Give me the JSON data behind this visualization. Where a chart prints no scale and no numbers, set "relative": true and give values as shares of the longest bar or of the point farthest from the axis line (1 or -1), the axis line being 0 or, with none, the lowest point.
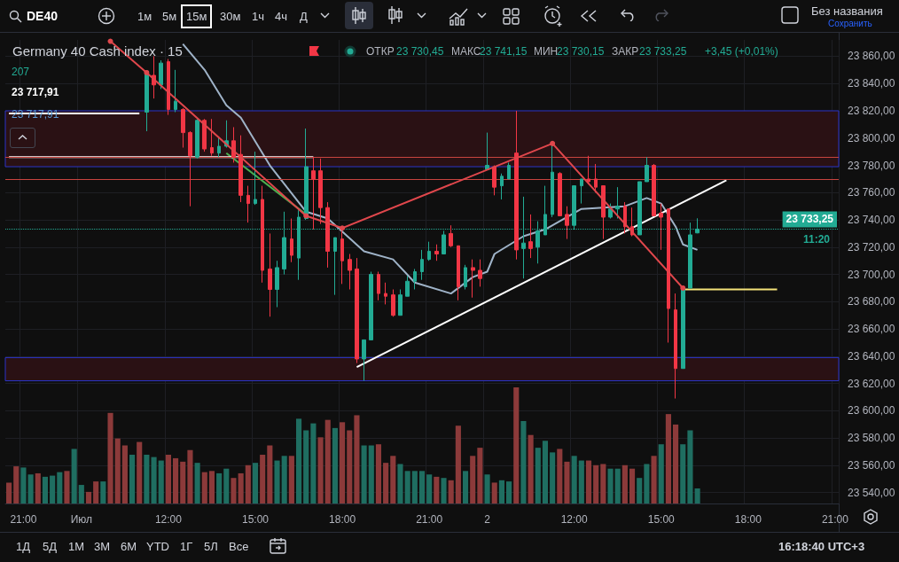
{
  "chart_data": [
    {
      "type": "candlestick",
      "title": "Germany 40 Cash index · 15",
      "annotations": [
        "DE40",
        "1м",
        "5м",
        "15м",
        "30м",
        "1ч",
        "4ч",
        "Д",
        "Без названия",
        "Сохранить",
        "ОТКР",
        "23 730,45",
        "МАКС",
        "23 741,15",
        "МИН",
        "23 730,15",
        "ЗАКР",
        "23 733,25",
        "+3,45 (+0,01%)",
        "207",
        "23 717,91",
        "23 717,91",
        "1Д",
        "5Д",
        "1М",
        "3М",
        "6М",
        "YTD",
        "1Г",
        "5Л",
        "Все",
        "16:18:40 UTC+3",
        "11:20"
      ],
      "categories": [
        null,
        null,
        "21:00",
        null,
        null,
        null,
        null,
        null,
        null,
        null,
        "Июл",
        null,
        null,
        null,
        null,
        null,
        null,
        null,
        null,
        null,
        null,
        null,
        "12:00",
        null,
        null,
        null,
        null,
        null,
        null,
        null,
        null,
        null,
        null,
        null,
        "15:00",
        null,
        null,
        null,
        null,
        null,
        null,
        null,
        null,
        null,
        null,
        null,
        "18:00",
        null,
        null,
        null,
        null,
        null,
        null,
        null,
        null,
        null,
        null,
        null,
        "21:00",
        null,
        null,
        null,
        null,
        null,
        null,
        null,
        "2",
        null,
        null,
        null,
        null,
        null,
        null,
        null,
        null,
        null,
        null,
        null,
        "12:00",
        null,
        null,
        null,
        null,
        null,
        null,
        null,
        null,
        null,
        null,
        null,
        "15:00",
        null,
        null,
        null,
        null,
        null,
        null,
        null,
        null,
        null,
        null,
        null,
        "18:00",
        null,
        null,
        null,
        null,
        null,
        null,
        null,
        null,
        null,
        null,
        null,
        "21:00"
      ],
      "colors": [
        null,
        null,
        null,
        null,
        null,
        null,
        null,
        null,
        null,
        null,
        null,
        null,
        null,
        null,
        null,
        null,
        null,
        null,
        null,
        "#22ab94",
        "#f23645",
        "#22ab94",
        "#f23645",
        "#22ab94",
        "#f23645",
        "#f23645",
        "#22ab94",
        "#f23645",
        "#f23645",
        "#22ab94",
        "#22ab94",
        "#f23645",
        "#f23645",
        "#f23645",
        "#22ab94",
        "#f23645",
        "#f23645",
        "#22ab94",
        "#22ab94",
        "#f23645",
        "#22ab94",
        "#22ab94",
        "#f23645",
        "#f23645",
        "#f23645",
        "#22ab94",
        "#f23645",
        "#f23645",
        "#f23645",
        "#22ab94",
        "#22ab94",
        "#f23645",
        "#f23645",
        "#f23645",
        "#22ab94",
        "#22ab94",
        "#22ab94",
        "#22ab94",
        "#22ab94",
        "#f23645",
        "#22ab94",
        "#f23645",
        "#f23645",
        "#22ab94",
        "#f23645",
        "#f23645",
        "#22ab94",
        "#f23645",
        "#22ab94",
        "#22ab94",
        "#f23645",
        "#22ab94",
        "#f23645",
        "#22ab94",
        "#22ab94",
        "#22ab94",
        "#f23645",
        "#f23645",
        "#22ab94",
        "#22ab94",
        "#f23645",
        "#f23645",
        "#f23645",
        "#22ab94",
        "#22ab94",
        "#f23645",
        "#f23645",
        "#22ab94",
        "#22ab94",
        "#f23645",
        "#f23645",
        "#f23645",
        "#f23645",
        "#22ab94",
        "#22ab94",
        "#22ab94",
        null,
        null,
        null,
        null,
        null,
        null,
        null,
        null,
        null,
        null,
        null,
        null,
        null,
        null,
        null,
        null,
        null,
        null,
        null
      ],
      "ohlc": [
        null,
        null,
        null,
        null,
        null,
        null,
        null,
        null,
        null,
        null,
        null,
        null,
        null,
        null,
        null,
        null,
        null,
        null,
        null,
        [
          23819,
          23849,
          23805,
          23849
        ],
        [
          23846,
          23860,
          23829,
          23839
        ],
        [
          23839,
          23857,
          23836,
          23855
        ],
        [
          23856,
          23858,
          23817,
          23821
        ],
        [
          23821,
          23850,
          23819,
          23827
        ],
        [
          23821,
          23822,
          23793,
          23804
        ],
        [
          23804,
          23805,
          23750,
          23787
        ],
        [
          23786,
          23814,
          23785,
          23813
        ],
        [
          23813,
          23814,
          23790,
          23792
        ],
        [
          23793,
          23814,
          23787,
          23789
        ],
        [
          23789,
          23800,
          23786,
          23794
        ],
        [
          23794,
          23813,
          23793,
          23798
        ],
        [
          23798,
          23808,
          23782,
          23786
        ],
        [
          23788,
          23802,
          23753,
          23758
        ],
        [
          23758,
          23765,
          23738,
          23752
        ],
        [
          23752,
          23790,
          23751,
          23755
        ],
        [
          23755,
          23765,
          23694,
          23703
        ],
        [
          23704,
          23730,
          23669,
          23689
        ],
        [
          23689,
          23710,
          23676,
          23705
        ],
        [
          23704,
          23746,
          23700,
          23727
        ],
        [
          23726,
          23741,
          23709,
          23714
        ],
        [
          23712,
          23747,
          23696,
          23742
        ],
        [
          23741,
          23807,
          23740,
          23779
        ],
        [
          23776,
          23786,
          23733,
          23770
        ],
        [
          23776,
          23785,
          23737,
          23749
        ],
        [
          23749,
          23753,
          23705,
          23717
        ],
        [
          23717,
          23727,
          23685,
          23727
        ],
        [
          23726,
          23732,
          23693,
          23710
        ],
        [
          23711,
          23715,
          23689,
          23703
        ],
        [
          23704,
          23712,
          23635,
          23638
        ],
        [
          23638,
          23652,
          23622,
          23652
        ],
        [
          23652,
          23702,
          23652,
          23700
        ],
        [
          23700,
          23702,
          23681,
          23686
        ],
        [
          23686,
          23694,
          23678,
          23684
        ],
        [
          23685,
          23689,
          23669,
          23670
        ],
        [
          23670,
          23689,
          23670,
          23685
        ],
        [
          23684,
          23699,
          23684,
          23695
        ],
        [
          23695,
          23704,
          23689,
          23702
        ],
        [
          23702,
          23718,
          23696,
          23711
        ],
        [
          23711,
          23724,
          23710,
          23717
        ],
        [
          23717,
          23722,
          23710,
          23715
        ],
        [
          23715,
          23732,
          23715,
          23729
        ],
        [
          23730,
          23736,
          23720,
          23721
        ],
        [
          23721,
          23721,
          23681,
          23691
        ],
        [
          23691,
          23707,
          23689,
          23705
        ],
        [
          23705,
          23711,
          23683,
          23703
        ],
        [
          23703,
          23711,
          23691,
          23697
        ],
        [
          23777,
          23804,
          23777,
          23780
        ],
        [
          23779,
          23780,
          23758,
          23764
        ],
        [
          23765,
          23774,
          23755,
          23772
        ],
        [
          23770,
          23782,
          23770,
          23780
        ],
        [
          23789,
          23820,
          23711,
          23718
        ],
        [
          23719,
          23757,
          23697,
          23723
        ],
        [
          23724,
          23744,
          23712,
          23719
        ],
        [
          23720,
          23739,
          23708,
          23732
        ],
        [
          23729,
          23765,
          23729,
          23744
        ],
        [
          23744,
          23795,
          23742,
          23775
        ],
        [
          23774,
          23775,
          23743,
          23743
        ],
        [
          23744,
          23750,
          23726,
          23736
        ],
        [
          23736,
          23765,
          23733,
          23765
        ],
        [
          23765,
          23770,
          23752,
          23770
        ],
        [
          23770,
          23787,
          23766,
          23768
        ],
        [
          23770,
          23781,
          23760,
          23764
        ],
        [
          23765,
          23765,
          23726,
          23742
        ],
        [
          23742,
          23752,
          23741,
          23748
        ],
        [
          23748,
          23764,
          23741,
          23750
        ],
        [
          23750,
          23753,
          23730,
          23735
        ],
        [
          23735,
          23749,
          23728,
          23729
        ],
        [
          23729,
          23768,
          23729,
          23768
        ],
        [
          23768,
          23786,
          23768,
          23780
        ],
        [
          23780,
          23781,
          23743,
          23743
        ],
        [
          23745,
          23752,
          23718,
          23742
        ],
        [
          23748,
          23748,
          23650,
          23675
        ],
        [
          23674,
          23686,
          23609,
          23631
        ],
        [
          23631,
          23690,
          23631,
          23690
        ],
        [
          23690,
          23738,
          23690,
          23729
        ],
        [
          23730.45,
          23741.15,
          23730.15,
          23733.25
        ],
        null,
        null,
        null,
        null,
        null,
        null,
        null,
        null,
        null,
        null,
        null,
        null,
        null,
        null,
        null,
        null,
        null,
        null,
        null
      ],
      "series": [
        {
          "type": "line",
          "color": "#9fb3c8",
          "values": [
            null,
            null,
            null,
            null,
            null,
            null,
            null,
            null,
            null,
            null,
            null,
            null,
            null,
            null,
            null,
            null,
            null,
            null,
            null,
            null,
            null,
            null,
            null,
            null,
            23869,
            null,
            null,
            23850,
            null,
            null,
            23824,
            null,
            23815,
            null,
            null,
            null,
            23780,
            null,
            null,
            null,
            null,
            23746,
            null,
            null,
            23741,
            null,
            null,
            null,
            null,
            23717,
            null,
            null,
            null,
            23711,
            null,
            null,
            23694,
            null,
            null,
            null,
            null,
            23686,
            null,
            null,
            23698,
            null,
            23702,
            23715,
            null,
            null,
            null,
            23728,
            null,
            null,
            23733,
            null,
            null,
            null,
            null,
            23748,
            null,
            null,
            null,
            null,
            null,
            23750,
            null,
            null,
            23756,
            null,
            23752,
            null,
            23735,
            23722,
            null,
            23718,
            null,
            null,
            null,
            null,
            null,
            null,
            null,
            null,
            null,
            null,
            null,
            null,
            null,
            null,
            null,
            null,
            null,
            null,
            null
          ]
        },
        {
          "type": "line",
          "color": "#e0474c",
          "marker": "circle",
          "values": [
            null,
            null,
            null,
            null,
            null,
            null,
            null,
            null,
            null,
            null,
            null,
            null,
            null,
            null,
            23871,
            null,
            null,
            null,
            null,
            23848,
            null,
            null,
            null,
            null,
            null,
            null,
            null,
            null,
            null,
            null,
            null,
            null,
            null,
            null,
            null,
            null,
            null,
            null,
            null,
            null,
            null,
            23743,
            null,
            null,
            null,
            null,
            23734,
            null,
            null,
            null,
            null,
            null,
            null,
            null,
            null,
            null,
            null,
            null,
            null,
            null,
            null,
            null,
            null,
            null,
            null,
            null,
            null,
            null,
            null,
            null,
            null,
            null,
            null,
            null,
            null,
            23796,
            null,
            null,
            null,
            null,
            null,
            null,
            null,
            null,
            null,
            null,
            null,
            null,
            null,
            null,
            null,
            null,
            null,
            23690,
            null,
            null,
            null,
            null,
            null,
            null,
            null,
            null,
            null,
            null,
            null,
            null,
            null,
            null,
            null,
            null,
            null,
            null,
            null,
            null,
            null
          ]
        },
        {
          "type": "line",
          "color": "#4caf50",
          "values": [
            null,
            null,
            null,
            null,
            null,
            null,
            null,
            null,
            null,
            null,
            null,
            null,
            null,
            null,
            null,
            null,
            null,
            null,
            null,
            null,
            null,
            null,
            null,
            null,
            null,
            null,
            null,
            null,
            null,
            null,
            23789,
            null,
            null,
            null,
            null,
            null,
            null,
            null,
            null,
            null,
            null,
            23744,
            null,
            null,
            null,
            null,
            null,
            null,
            null,
            null,
            null,
            null,
            null,
            null,
            null,
            null,
            null,
            null,
            null,
            null,
            null,
            null,
            null,
            null,
            null,
            null,
            null,
            null,
            null,
            null,
            null,
            null,
            null,
            null,
            null,
            null,
            null,
            null,
            null,
            null,
            null,
            null,
            null,
            null,
            null,
            null,
            null,
            null,
            null,
            null,
            null,
            null,
            null,
            null,
            null,
            null,
            null,
            null,
            null,
            null,
            null,
            null,
            null,
            null,
            null,
            null,
            null,
            null,
            null,
            null,
            null,
            null,
            null,
            null,
            null
          ]
        },
        {
          "type": "line",
          "color": "#ffffff",
          "values": [
            null,
            null,
            null,
            null,
            null,
            null,
            null,
            null,
            null,
            null,
            null,
            null,
            null,
            null,
            null,
            null,
            null,
            null,
            null,
            null,
            null,
            null,
            null,
            null,
            null,
            null,
            null,
            null,
            null,
            null,
            null,
            null,
            null,
            null,
            null,
            null,
            null,
            null,
            null,
            null,
            null,
            null,
            null,
            null,
            null,
            null,
            null,
            null,
            23632,
            null,
            null,
            null,
            null,
            null,
            null,
            null,
            null,
            null,
            null,
            null,
            null,
            null,
            null,
            null,
            null,
            null,
            null,
            null,
            null,
            null,
            null,
            null,
            null,
            null,
            null,
            null,
            null,
            null,
            null,
            null,
            null,
            null,
            null,
            null,
            null,
            null,
            null,
            null,
            null,
            null,
            null,
            null,
            null,
            null,
            null,
            null,
            null,
            null,
            null,
            23769,
            null,
            null,
            null,
            null,
            null,
            null,
            null,
            null,
            null,
            null,
            null,
            null,
            null,
            null,
            null
          ]
        },
        {
          "type": "line",
          "color": "#ffffff",
          "values": [
            23818,
            null,
            null,
            null,
            null,
            null,
            null,
            null,
            null,
            null,
            null,
            null,
            null,
            null,
            null,
            null,
            null,
            null,
            23818,
            null,
            null,
            null,
            null,
            null,
            null,
            null,
            null,
            null,
            null,
            null,
            null,
            null,
            null,
            null,
            null,
            null,
            null,
            null,
            null,
            null,
            null,
            null,
            null,
            null,
            null,
            null,
            null,
            null,
            null,
            null,
            null,
            null,
            null,
            null,
            null,
            null,
            null,
            null,
            null,
            null,
            null,
            null,
            null,
            null,
            null,
            null,
            null,
            null,
            null,
            null,
            null,
            null,
            null,
            null,
            null,
            null,
            null,
            null,
            null,
            null,
            null,
            null,
            null,
            null,
            null,
            null,
            null,
            null,
            null,
            null,
            null,
            null,
            null,
            null,
            null,
            null,
            null,
            null,
            null,
            null,
            null,
            null,
            null,
            null,
            null,
            null,
            null,
            null,
            null,
            null,
            null,
            null,
            null,
            null,
            null
          ]
        },
        {
          "type": "line",
          "color": "#ffffff",
          "values": [
            23786,
            null,
            null,
            null,
            null,
            null,
            null,
            null,
            null,
            null,
            null,
            null,
            null,
            null,
            null,
            null,
            null,
            null,
            null,
            null,
            null,
            null,
            null,
            null,
            null,
            null,
            null,
            null,
            null,
            null,
            null,
            null,
            null,
            null,
            null,
            null,
            null,
            null,
            null,
            null,
            null,
            null,
            23786,
            null,
            null,
            null,
            null,
            null,
            null,
            null,
            null,
            null,
            null,
            null,
            null,
            null,
            null,
            null,
            null,
            null,
            null,
            null,
            null,
            null,
            null,
            null,
            null,
            null,
            null,
            null,
            null,
            null,
            null,
            null,
            null,
            null,
            null,
            null,
            null,
            null,
            null,
            null,
            null,
            null,
            null,
            null,
            null,
            null,
            null,
            null,
            null,
            null,
            null,
            null,
            null,
            null,
            null,
            null,
            null,
            null,
            null,
            null,
            null,
            null,
            null,
            null,
            null,
            null,
            null,
            null,
            null,
            null,
            null,
            null,
            null
          ]
        },
        {
          "type": "line",
          "color": "#f5e37a",
          "values": [
            null,
            null,
            null,
            null,
            null,
            null,
            null,
            null,
            null,
            null,
            null,
            null,
            null,
            null,
            null,
            null,
            null,
            null,
            null,
            null,
            null,
            null,
            null,
            null,
            null,
            null,
            null,
            null,
            null,
            null,
            null,
            null,
            null,
            null,
            null,
            null,
            null,
            null,
            null,
            null,
            null,
            null,
            null,
            null,
            null,
            null,
            null,
            null,
            null,
            null,
            null,
            null,
            null,
            null,
            null,
            null,
            null,
            null,
            null,
            null,
            null,
            null,
            null,
            null,
            null,
            null,
            null,
            null,
            null,
            null,
            null,
            null,
            null,
            null,
            null,
            null,
            null,
            null,
            null,
            null,
            null,
            null,
            null,
            null,
            null,
            null,
            null,
            null,
            null,
            null,
            null,
            null,
            null,
            23689,
            null,
            null,
            null,
            null,
            null,
            null,
            null,
            null,
            null,
            null,
            null,
            null,
            23689,
            null,
            null,
            null,
            null,
            null,
            null,
            null,
            null
          ]
        }
      ],
      "ylim": [
        23532,
        23872
      ],
      "yticks": [
        {
          "value": 23540,
          "label": "23 540,00"
        },
        {
          "value": 23560,
          "label": "23 560,00"
        },
        {
          "value": 23580,
          "label": "23 580,00"
        },
        {
          "value": 23600,
          "label": "23 600,00"
        },
        {
          "value": 23620,
          "label": "23 620,00"
        },
        {
          "value": 23640,
          "label": "23 640,00"
        },
        {
          "value": 23660,
          "label": "23 660,00"
        },
        {
          "value": 23680,
          "label": "23 680,00"
        },
        {
          "value": 23700,
          "label": "23 700,00"
        },
        {
          "value": 23720,
          "label": "23 720,00"
        },
        {
          "value": 23740,
          "label": "23 740,00"
        },
        {
          "value": 23760,
          "label": "23 760,00"
        },
        {
          "value": 23780,
          "label": "23 780,00"
        },
        {
          "value": 23800,
          "label": "23 800,00"
        },
        {
          "value": 23820,
          "label": "23 820,00"
        },
        {
          "value": 23840,
          "label": "23 840,00"
        },
        {
          "value": 23860,
          "label": "23 860,00"
        }
      ],
      "ref_lines": [
        {
          "axis": "y",
          "value": 23786,
          "color": "#c8443f"
        },
        {
          "axis": "y",
          "value": 23770,
          "color": "#c8443f"
        },
        {
          "axis": "y",
          "value": 23733.25,
          "label": "23 733,25",
          "color": "#22ab94",
          "line_style": "dotted"
        }
      ],
      "bands": [
        {
          "axis": "y",
          "from": 23779,
          "to": 23820,
          "color": "#2a1114"
        },
        {
          "axis": "y",
          "from": 23622,
          "to": 23639,
          "color": "#2a1114"
        }
      ],
      "grid": true
    },
    {
      "type": "bar",
      "relative": true,
      "categories": [
        null,
        null,
        null,
        null,
        null,
        null,
        null,
        null,
        null,
        null,
        null,
        null,
        null,
        null,
        null,
        null,
        null,
        null,
        null,
        null,
        null,
        null,
        null,
        null,
        null,
        null,
        null,
        null,
        null,
        null,
        null,
        null,
        null,
        null,
        null,
        null,
        null,
        null,
        null,
        null,
        null,
        null,
        null,
        null,
        null,
        null,
        null,
        null,
        null,
        null,
        null,
        null,
        null,
        null,
        null,
        null,
        null,
        null,
        null,
        null,
        null,
        null,
        null,
        null,
        null,
        null,
        null,
        null,
        null,
        null,
        null,
        null,
        null,
        null,
        null,
        null,
        null,
        null,
        null,
        null,
        null,
        null,
        null,
        null,
        null,
        null,
        null,
        null,
        null,
        null,
        null,
        null,
        null,
        null,
        null,
        null,
        null,
        null,
        null,
        null,
        null,
        null,
        null,
        null,
        null,
        null,
        null,
        null,
        null,
        null,
        null,
        null,
        null,
        null,
        null
      ],
      "values": [
        0.18,
        0.32,
        0.31,
        0.25,
        0.26,
        0.23,
        0.24,
        0.27,
        0.28,
        0.47,
        0.16,
        0.1,
        0.19,
        0.19,
        0.78,
        0.56,
        0.5,
        0.42,
        0.53,
        0.42,
        0.4,
        0.37,
        0.42,
        0.39,
        0.36,
        0.46,
        0.35,
        0.27,
        0.28,
        0.26,
        0.3,
        0.22,
        0.26,
        0.33,
        0.35,
        0.42,
        0.5,
        0.37,
        0.41,
        0.41,
        0.73,
        0.63,
        0.69,
        0.57,
        0.72,
        0.65,
        0.7,
        0.63,
        0.76,
        0.5,
        0.5,
        0.51,
        0.35,
        0.41,
        0.34,
        0.28,
        0.28,
        0.28,
        0.25,
        0.23,
        0.22,
        0.2,
        0.67,
        0.28,
        0.41,
        0.48,
        0.25,
        0.18,
        0.2,
        0.19,
        1,
        0.71,
        0.59,
        0.48,
        0.54,
        0.44,
        0.47,
        0.36,
        0.41,
        0.37,
        0.37,
        0.33,
        0.34,
        0.3,
        0.3,
        0.33,
        0.3,
        0.22,
        0.34,
        0.41,
        0.51,
        0.77,
        0.68,
        0.51,
        0.63,
        0.13,
        null,
        null,
        null,
        null,
        null,
        null,
        null,
        null,
        null,
        null,
        null,
        null,
        null,
        null,
        null,
        null,
        null,
        null,
        null
      ],
      "colors": [
        "#8c3a3a",
        "#8c3a3a",
        "#1f6e61",
        "#1f6e61",
        "#8c3a3a",
        "#1f6e61",
        "#1f6e61",
        "#1f6e61",
        "#8c3a3a",
        "#1f6e61",
        "#1f6e61",
        "#8c3a3a",
        "#8c3a3a",
        "#1f6e61",
        "#8c3a3a",
        "#8c3a3a",
        "#8c3a3a",
        "#1f6e61",
        "#8c3a3a",
        "#1f6e61",
        "#1f6e61",
        "#1f6e61",
        "#8c3a3a",
        "#8c3a3a",
        "#8c3a3a",
        "#8c3a3a",
        "#1f6e61",
        "#8c3a3a",
        "#8c3a3a",
        "#1f6e61",
        "#1f6e61",
        "#8c3a3a",
        "#8c3a3a",
        "#8c3a3a",
        "#1f6e61",
        "#8c3a3a",
        "#8c3a3a",
        "#1f6e61",
        "#1f6e61",
        "#8c3a3a",
        "#1f6e61",
        "#1f6e61",
        "#1f6e61",
        "#8c3a3a",
        "#8c3a3a",
        "#1f6e61",
        "#8c3a3a",
        "#8c3a3a",
        "#8c3a3a",
        "#1f6e61",
        "#1f6e61",
        "#8c3a3a",
        "#8c3a3a",
        "#8c3a3a",
        "#1f6e61",
        "#1f6e61",
        "#1f6e61",
        "#1f6e61",
        "#1f6e61",
        "#8c3a3a",
        "#1f6e61",
        "#8c3a3a",
        "#8c3a3a",
        "#1f6e61",
        "#8c3a3a",
        "#8c3a3a",
        "#1f6e61",
        "#8c3a3a",
        "#1f6e61",
        "#1f6e61",
        "#8c3a3a",
        "#1f6e61",
        "#8c3a3a",
        "#1f6e61",
        "#1f6e61",
        "#1f6e61",
        "#8c3a3a",
        "#8c3a3a",
        "#1f6e61",
        "#1f6e61",
        "#8c3a3a",
        "#8c3a3a",
        "#8c3a3a",
        "#1f6e61",
        "#1f6e61",
        "#8c3a3a",
        "#8c3a3a",
        "#1f6e61",
        "#1f6e61",
        "#8c3a3a",
        "#1f6e61",
        "#8c3a3a",
        "#8c3a3a",
        "#1f6e61",
        "#1f6e61",
        "#1f6e61",
        null,
        null,
        null,
        null,
        null,
        null,
        null,
        null,
        null,
        null,
        null,
        null,
        null,
        null,
        null,
        null,
        null,
        null,
        null
      ]
    }
  ]
}
